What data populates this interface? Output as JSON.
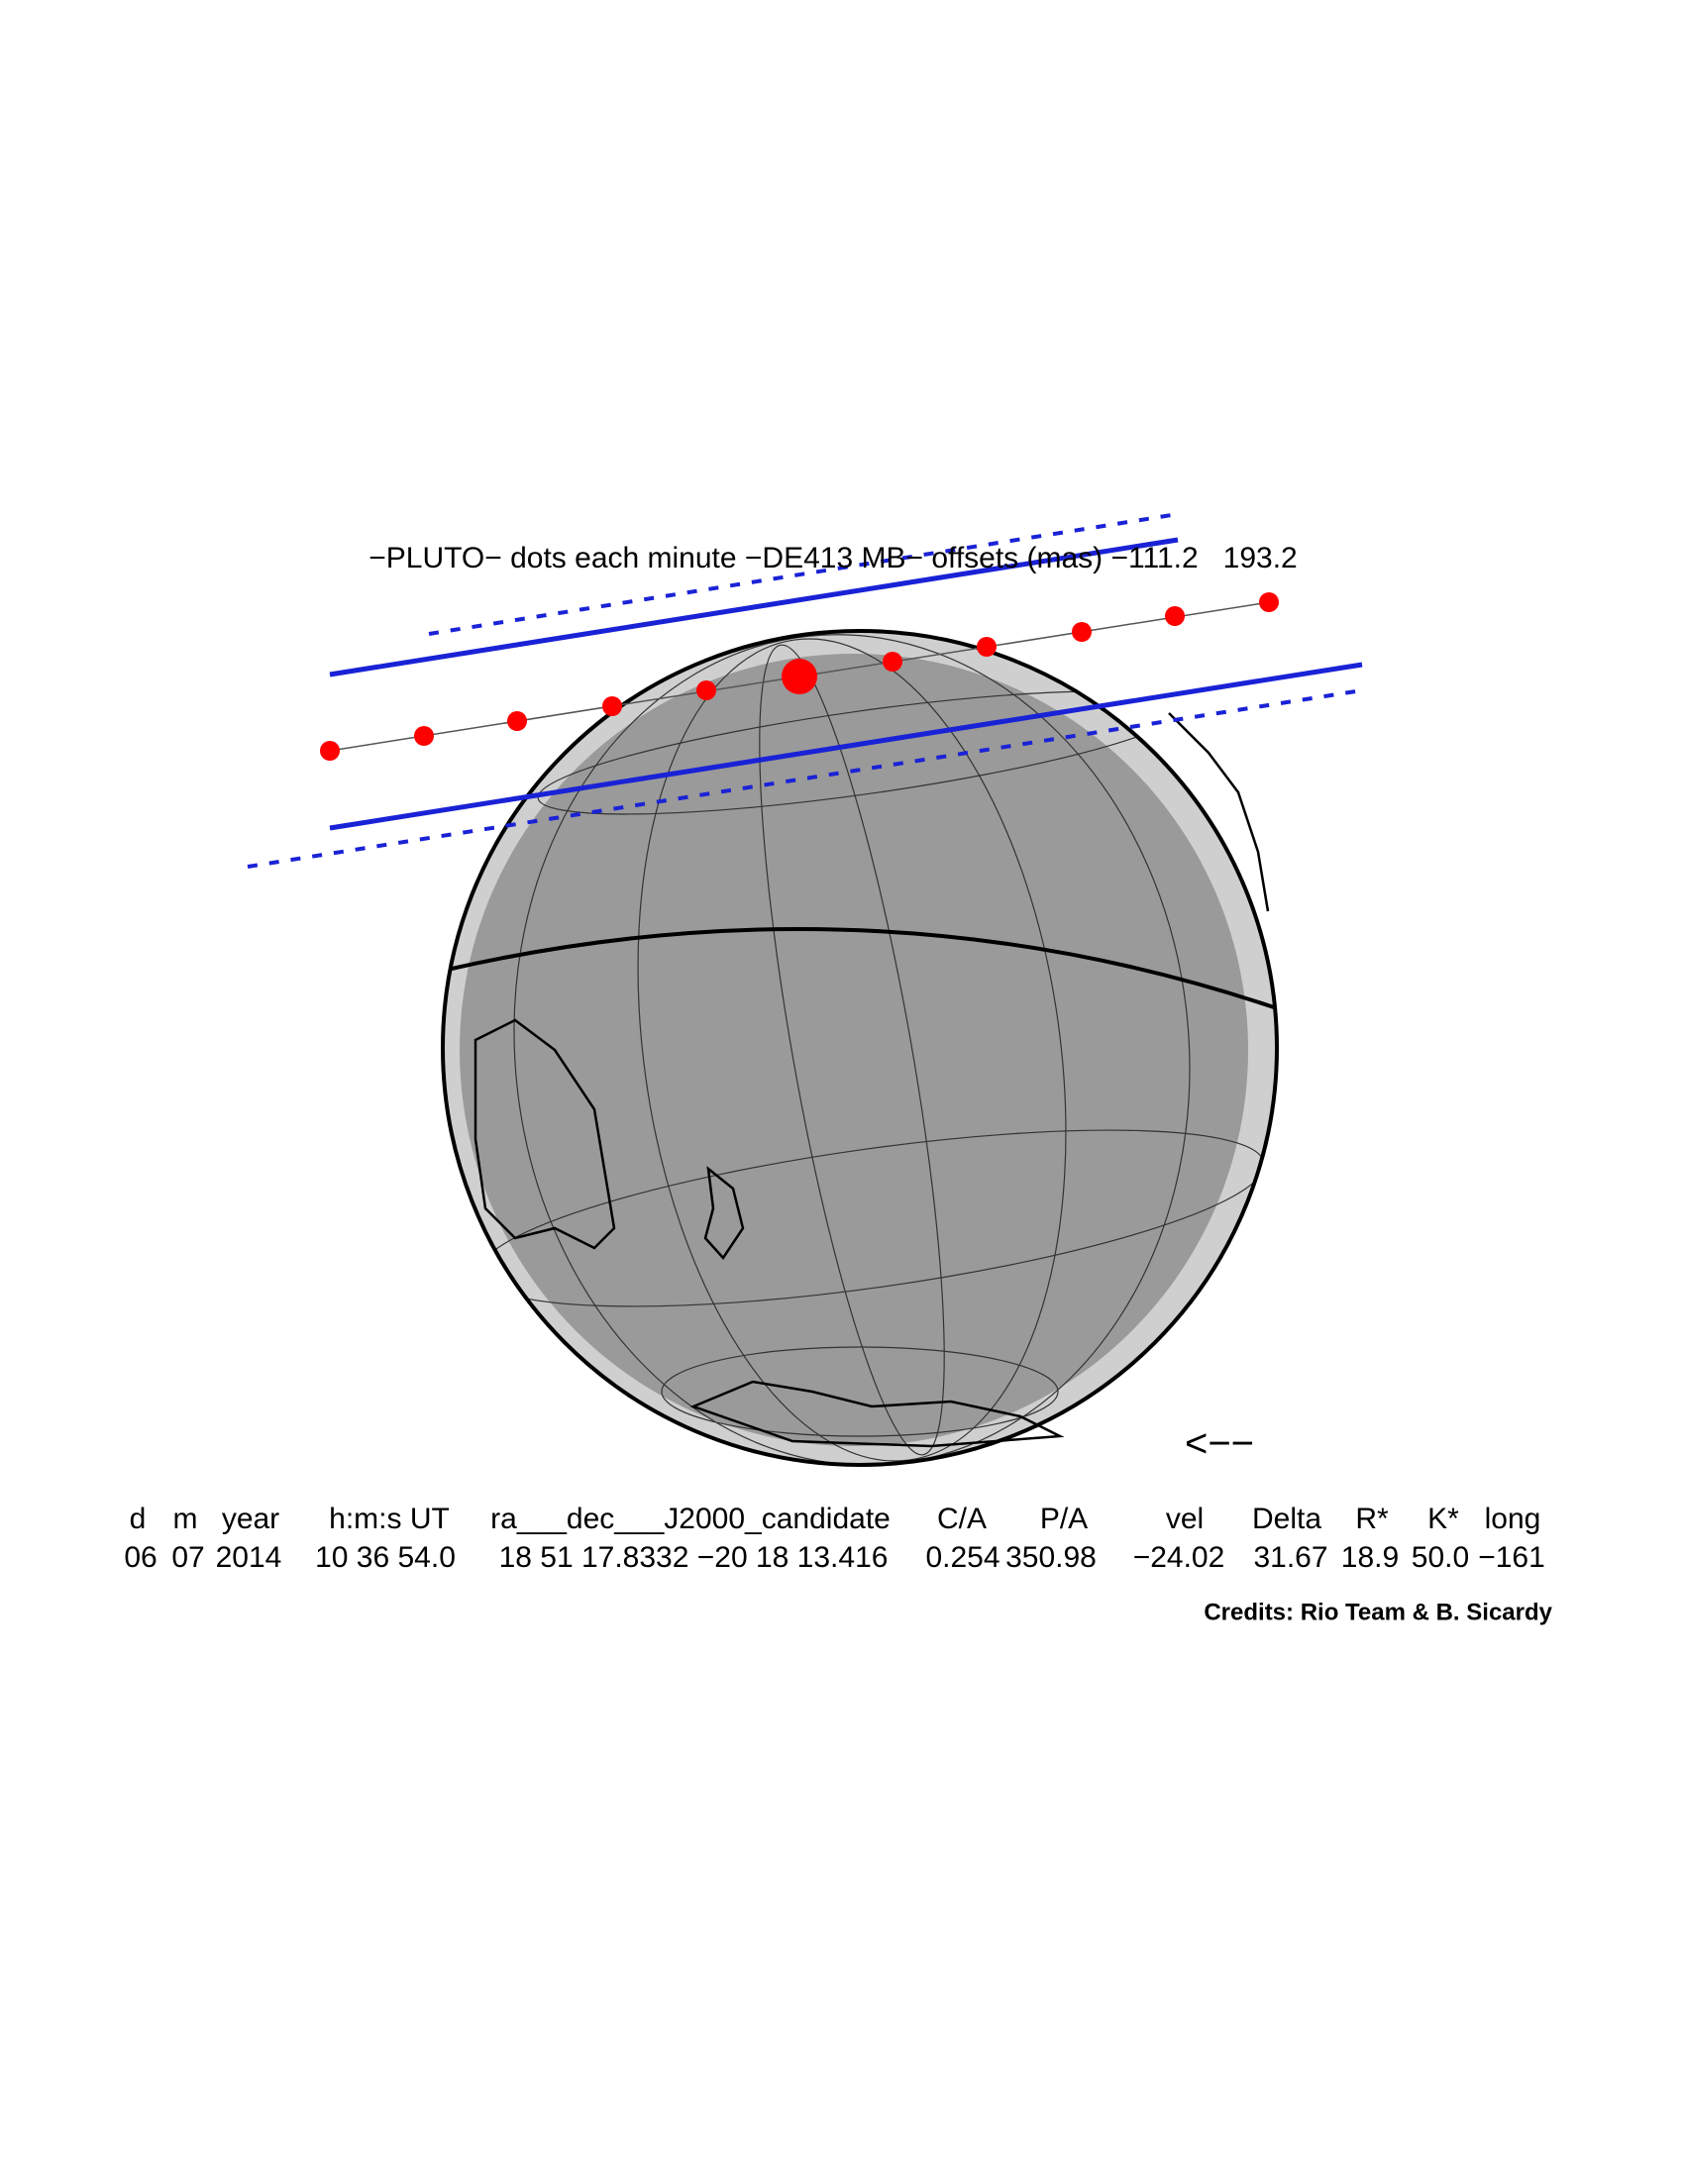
{
  "title": "−PLUTO− dots each minute −DE413 MB− offsets (mas) −111.2   193.2",
  "direction_arrow": "<−−",
  "table": {
    "headers": [
      "d",
      "m",
      "year",
      "h:m:s UT",
      "ra___dec___J2000_candidate",
      "C/A",
      "P/A",
      "vel",
      "Delta",
      "R*",
      "K*",
      "long"
    ],
    "values": [
      "06",
      "07",
      "2014",
      "10 36 54.0",
      "18 51 17.8332 −20 18 13.416",
      "0.254",
      "350.98",
      "−24.02",
      "31.67",
      "18.9",
      "50.0",
      "−161"
    ]
  },
  "credits": "Credits: Rio Team & B. Sicardy"
}
